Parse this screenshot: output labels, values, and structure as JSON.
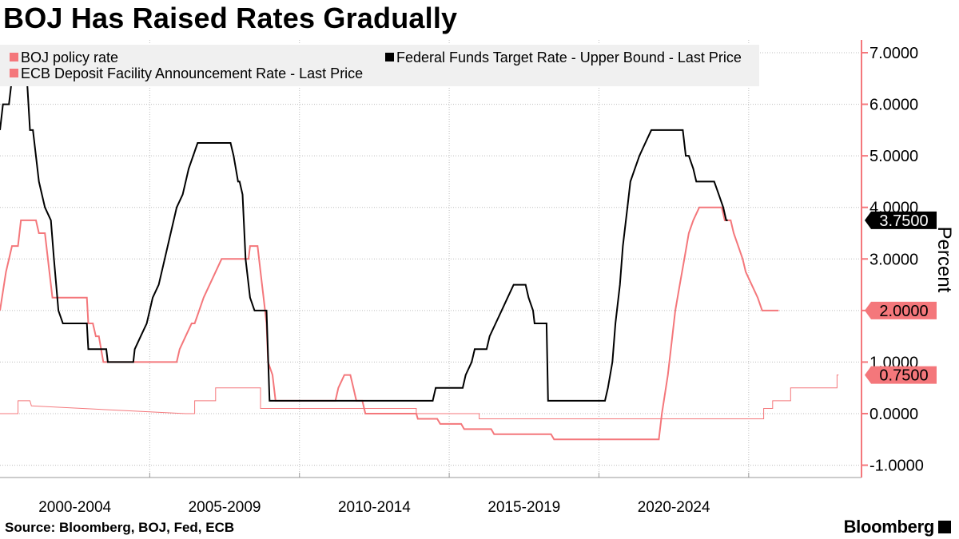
{
  "title": "BOJ Has Raised Rates Gradually",
  "source": "Source: Bloomberg, BOJ, Fed, ECB",
  "brand": "Bloomberg",
  "colors": {
    "boj": "#f4777b",
    "fed": "#000000",
    "ecb": "#f4777b",
    "axis": "#f4777b",
    "legend_bg": "#f0f0f0",
    "grid": "#bdbdbd"
  },
  "chart_data": {
    "type": "line",
    "ylabel": "Percent",
    "ylim": [
      -1.2,
      7.3
    ],
    "xlim": [
      1998.0,
      2026.1
    ],
    "x_ticks": [
      1998.0,
      2003.0,
      2008.0,
      2013.0,
      2018.0,
      2023.0
    ],
    "x_tick_labels": [
      {
        "label": "2000-2004",
        "x": 2000.5
      },
      {
        "label": "2005-2009",
        "x": 2005.5
      },
      {
        "label": "2010-2014",
        "x": 2010.5
      },
      {
        "label": "2015-2019",
        "x": 2015.5
      },
      {
        "label": "2020-2024",
        "x": 2020.5
      }
    ],
    "y_ticks": [
      {
        "value": 7,
        "label": "7.0000"
      },
      {
        "value": 6,
        "label": "6.0000"
      },
      {
        "value": 5,
        "label": "5.0000"
      },
      {
        "value": 4,
        "label": "4.0000"
      },
      {
        "value": 3,
        "label": "3.0000"
      },
      {
        "value": 2,
        "label": "2.0000"
      },
      {
        "value": 1,
        "label": "1.0000"
      },
      {
        "value": 0,
        "label": "0.0000"
      },
      {
        "value": -1,
        "label": "-1.0000"
      }
    ],
    "legend": "top-left",
    "grid": true,
    "series": [
      {
        "name": "BOJ policy rate",
        "color": "#f4777b",
        "width": 1,
        "last_label": "0.7500",
        "points": [
          [
            1998.0,
            0.0
          ],
          [
            1998.6,
            0.0
          ],
          [
            1998.6,
            0.25
          ],
          [
            1999.0,
            0.25
          ],
          [
            1999.05,
            0.15
          ],
          [
            2004.2,
            0.0
          ],
          [
            2004.5,
            0.0
          ],
          [
            2004.5,
            0.25
          ],
          [
            2005.2,
            0.25
          ],
          [
            2005.2,
            0.5
          ],
          [
            2006.7,
            0.5
          ],
          [
            2006.7,
            0.1
          ],
          [
            2011.9,
            0.1
          ],
          [
            2011.9,
            0.0
          ],
          [
            2014.0,
            0.0
          ],
          [
            2014.0,
            -0.1
          ],
          [
            2023.5,
            -0.1
          ],
          [
            2023.5,
            0.1
          ],
          [
            2023.8,
            0.1
          ],
          [
            2023.8,
            0.25
          ],
          [
            2024.4,
            0.25
          ],
          [
            2024.4,
            0.5
          ],
          [
            2025.95,
            0.5
          ],
          [
            2025.95,
            0.75
          ],
          [
            2026.0,
            0.75
          ]
        ]
      },
      {
        "name": "Federal Funds Target Rate - Upper Bound - Last Price",
        "color": "#000000",
        "width": 2,
        "last_label": "3.7500",
        "points": [
          [
            1998.0,
            5.5
          ],
          [
            1998.1,
            6.0
          ],
          [
            1998.3,
            6.0
          ],
          [
            1998.4,
            6.5
          ],
          [
            1998.9,
            6.5
          ],
          [
            1999.0,
            5.5
          ],
          [
            1999.1,
            5.5
          ],
          [
            1999.3,
            4.5
          ],
          [
            1999.5,
            4.0
          ],
          [
            1999.7,
            3.75
          ],
          [
            1999.8,
            3.0
          ],
          [
            1999.95,
            2.0
          ],
          [
            2000.1,
            1.75
          ],
          [
            2000.9,
            1.75
          ],
          [
            2000.95,
            1.25
          ],
          [
            2001.55,
            1.25
          ],
          [
            2001.6,
            1.0
          ],
          [
            2002.45,
            1.0
          ],
          [
            2002.5,
            1.25
          ],
          [
            2002.7,
            1.5
          ],
          [
            2002.9,
            1.75
          ],
          [
            2003.1,
            2.25
          ],
          [
            2003.3,
            2.5
          ],
          [
            2003.5,
            3.0
          ],
          [
            2003.7,
            3.5
          ],
          [
            2003.9,
            4.0
          ],
          [
            2004.1,
            4.25
          ],
          [
            2004.3,
            4.75
          ],
          [
            2004.6,
            5.25
          ],
          [
            2005.7,
            5.25
          ],
          [
            2005.8,
            5.0
          ],
          [
            2005.95,
            4.5
          ],
          [
            2006.0,
            4.5
          ],
          [
            2006.1,
            4.25
          ],
          [
            2006.2,
            3.0
          ],
          [
            2006.35,
            2.25
          ],
          [
            2006.5,
            2.0
          ],
          [
            2006.9,
            2.0
          ],
          [
            2007.0,
            0.25
          ],
          [
            2012.45,
            0.25
          ],
          [
            2012.55,
            0.5
          ],
          [
            2013.45,
            0.5
          ],
          [
            2013.55,
            0.75
          ],
          [
            2013.75,
            1.0
          ],
          [
            2013.85,
            1.25
          ],
          [
            2014.25,
            1.25
          ],
          [
            2014.35,
            1.5
          ],
          [
            2014.55,
            1.75
          ],
          [
            2014.75,
            2.0
          ],
          [
            2014.95,
            2.25
          ],
          [
            2015.15,
            2.5
          ],
          [
            2015.55,
            2.5
          ],
          [
            2015.65,
            2.25
          ],
          [
            2015.8,
            2.0
          ],
          [
            2015.85,
            1.75
          ],
          [
            2016.25,
            1.75
          ],
          [
            2016.3,
            0.25
          ],
          [
            2018.2,
            0.25
          ],
          [
            2018.3,
            0.5
          ],
          [
            2018.45,
            1.0
          ],
          [
            2018.55,
            1.75
          ],
          [
            2018.7,
            2.5
          ],
          [
            2018.8,
            3.25
          ],
          [
            2018.95,
            4.0
          ],
          [
            2019.05,
            4.5
          ],
          [
            2019.2,
            4.75
          ],
          [
            2019.35,
            5.0
          ],
          [
            2019.55,
            5.25
          ],
          [
            2019.75,
            5.5
          ],
          [
            2020.8,
            5.5
          ],
          [
            2020.9,
            5.0
          ],
          [
            2021.0,
            5.0
          ],
          [
            2021.15,
            4.75
          ],
          [
            2021.25,
            4.5
          ],
          [
            2021.85,
            4.5
          ],
          [
            2022.0,
            4.25
          ],
          [
            2022.15,
            4.0
          ],
          [
            2022.25,
            3.75
          ],
          [
            2022.3,
            3.75
          ]
        ]
      },
      {
        "name": "ECB Deposit Facility Announcement Rate - Last Price",
        "color": "#f4777b",
        "width": 2,
        "last_label": "2.0000",
        "points": [
          [
            1998.0,
            2.0
          ],
          [
            1998.2,
            2.75
          ],
          [
            1998.4,
            3.25
          ],
          [
            1998.6,
            3.25
          ],
          [
            1998.7,
            3.75
          ],
          [
            1999.2,
            3.75
          ],
          [
            1999.3,
            3.5
          ],
          [
            1999.5,
            3.5
          ],
          [
            1999.65,
            2.75
          ],
          [
            1999.75,
            2.25
          ],
          [
            2000.9,
            2.25
          ],
          [
            2000.95,
            1.75
          ],
          [
            2001.1,
            1.75
          ],
          [
            2001.2,
            1.5
          ],
          [
            2001.3,
            1.5
          ],
          [
            2001.45,
            1.0
          ],
          [
            2002.45,
            1.0
          ],
          [
            2002.5,
            1.0
          ],
          [
            2003.9,
            1.0
          ],
          [
            2004.0,
            1.25
          ],
          [
            2004.2,
            1.5
          ],
          [
            2004.4,
            1.75
          ],
          [
            2004.5,
            1.75
          ],
          [
            2004.65,
            2.0
          ],
          [
            2004.8,
            2.25
          ],
          [
            2005.0,
            2.5
          ],
          [
            2005.2,
            2.75
          ],
          [
            2005.4,
            3.0
          ],
          [
            2006.3,
            3.0
          ],
          [
            2006.35,
            3.25
          ],
          [
            2006.6,
            3.25
          ],
          [
            2006.7,
            2.75
          ],
          [
            2006.8,
            2.25
          ],
          [
            2006.9,
            1.75
          ],
          [
            2006.95,
            1.0
          ],
          [
            2007.1,
            0.75
          ],
          [
            2007.2,
            0.25
          ],
          [
            2009.2,
            0.25
          ],
          [
            2009.3,
            0.5
          ],
          [
            2009.5,
            0.75
          ],
          [
            2009.7,
            0.75
          ],
          [
            2009.8,
            0.5
          ],
          [
            2009.9,
            0.25
          ],
          [
            2010.1,
            0.25
          ],
          [
            2010.2,
            0.0
          ],
          [
            2011.9,
            0.0
          ],
          [
            2011.95,
            -0.1
          ],
          [
            2012.6,
            -0.1
          ],
          [
            2012.7,
            -0.2
          ],
          [
            2013.4,
            -0.2
          ],
          [
            2013.5,
            -0.3
          ],
          [
            2014.4,
            -0.3
          ],
          [
            2014.5,
            -0.4
          ],
          [
            2016.4,
            -0.4
          ],
          [
            2016.5,
            -0.5
          ],
          [
            2020.0,
            -0.5
          ],
          [
            2020.1,
            0.0
          ],
          [
            2020.3,
            0.75
          ],
          [
            2020.45,
            1.5
          ],
          [
            2020.55,
            2.0
          ],
          [
            2020.7,
            2.5
          ],
          [
            2020.85,
            3.0
          ],
          [
            2021.0,
            3.5
          ],
          [
            2021.15,
            3.75
          ],
          [
            2021.35,
            4.0
          ],
          [
            2022.1,
            4.0
          ],
          [
            2022.2,
            3.75
          ],
          [
            2022.4,
            3.75
          ],
          [
            2022.5,
            3.5
          ],
          [
            2022.65,
            3.25
          ],
          [
            2022.8,
            3.0
          ],
          [
            2022.9,
            2.75
          ],
          [
            2023.1,
            2.5
          ],
          [
            2023.3,
            2.25
          ],
          [
            2023.45,
            2.0
          ],
          [
            2024.0,
            2.0
          ]
        ]
      }
    ]
  }
}
